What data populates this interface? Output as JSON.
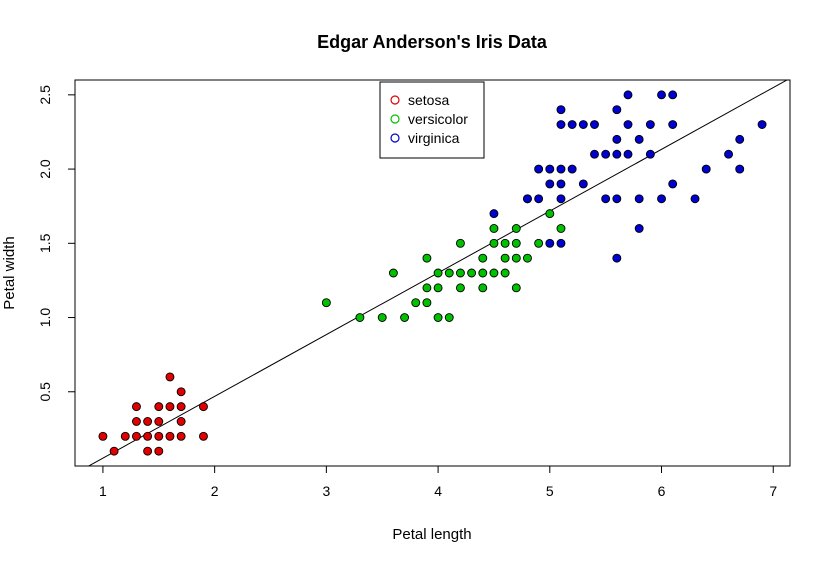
{
  "chart_data": {
    "type": "scatter",
    "title": "Edgar Anderson's Iris Data",
    "xlabel": "Petal length",
    "ylabel": "Petal width",
    "xlim": [
      0.75,
      7.15
    ],
    "ylim": [
      0,
      2.6
    ],
    "xticks": [
      "1",
      "2",
      "3",
      "4",
      "5",
      "6",
      "7"
    ],
    "xtick_values": [
      1,
      2,
      3,
      4,
      5,
      6,
      7
    ],
    "yticks": [
      "0.5",
      "1.0",
      "1.5",
      "2.0",
      "2.5"
    ],
    "ytick_values": [
      0.5,
      1.0,
      1.5,
      2.0,
      2.5
    ],
    "grid": false,
    "legend_position": "top-center",
    "regression_line": {
      "intercept": -0.363,
      "slope": 0.416,
      "color": "#000000"
    },
    "series": [
      {
        "name": "setosa",
        "color": "#e00000",
        "points": [
          [
            1.0,
            0.2
          ],
          [
            1.1,
            0.1
          ],
          [
            1.2,
            0.2
          ],
          [
            1.3,
            0.2
          ],
          [
            1.3,
            0.3
          ],
          [
            1.3,
            0.4
          ],
          [
            1.4,
            0.1
          ],
          [
            1.4,
            0.2
          ],
          [
            1.4,
            0.3
          ],
          [
            1.5,
            0.1
          ],
          [
            1.5,
            0.2
          ],
          [
            1.5,
            0.3
          ],
          [
            1.5,
            0.4
          ],
          [
            1.6,
            0.2
          ],
          [
            1.6,
            0.4
          ],
          [
            1.6,
            0.6
          ],
          [
            1.7,
            0.2
          ],
          [
            1.7,
            0.3
          ],
          [
            1.7,
            0.4
          ],
          [
            1.7,
            0.5
          ],
          [
            1.9,
            0.2
          ],
          [
            1.9,
            0.4
          ]
        ]
      },
      {
        "name": "versicolor",
        "color": "#00c000",
        "points": [
          [
            3.0,
            1.1
          ],
          [
            3.3,
            1.0
          ],
          [
            3.5,
            1.0
          ],
          [
            3.6,
            1.3
          ],
          [
            3.7,
            1.0
          ],
          [
            3.8,
            1.1
          ],
          [
            3.9,
            1.1
          ],
          [
            3.9,
            1.2
          ],
          [
            3.9,
            1.4
          ],
          [
            4.0,
            1.0
          ],
          [
            4.0,
            1.2
          ],
          [
            4.0,
            1.3
          ],
          [
            4.1,
            1.0
          ],
          [
            4.1,
            1.3
          ],
          [
            4.2,
            1.2
          ],
          [
            4.2,
            1.3
          ],
          [
            4.2,
            1.5
          ],
          [
            4.3,
            1.3
          ],
          [
            4.4,
            1.2
          ],
          [
            4.4,
            1.3
          ],
          [
            4.4,
            1.4
          ],
          [
            4.5,
            1.3
          ],
          [
            4.5,
            1.5
          ],
          [
            4.5,
            1.6
          ],
          [
            4.6,
            1.3
          ],
          [
            4.6,
            1.4
          ],
          [
            4.6,
            1.5
          ],
          [
            4.7,
            1.2
          ],
          [
            4.7,
            1.4
          ],
          [
            4.7,
            1.5
          ],
          [
            4.7,
            1.6
          ],
          [
            4.8,
            1.4
          ],
          [
            4.8,
            1.8
          ],
          [
            4.9,
            1.5
          ],
          [
            5.0,
            1.7
          ],
          [
            5.1,
            1.6
          ]
        ]
      },
      {
        "name": "virginica",
        "color": "#0000d0",
        "points": [
          [
            4.5,
            1.7
          ],
          [
            4.8,
            1.8
          ],
          [
            4.9,
            1.8
          ],
          [
            4.9,
            2.0
          ],
          [
            5.0,
            1.5
          ],
          [
            5.0,
            1.9
          ],
          [
            5.0,
            2.0
          ],
          [
            5.1,
            1.5
          ],
          [
            5.1,
            1.8
          ],
          [
            5.1,
            1.9
          ],
          [
            5.1,
            2.0
          ],
          [
            5.1,
            2.3
          ],
          [
            5.1,
            2.4
          ],
          [
            5.2,
            2.0
          ],
          [
            5.2,
            2.3
          ],
          [
            5.3,
            1.9
          ],
          [
            5.3,
            2.3
          ],
          [
            5.4,
            2.1
          ],
          [
            5.4,
            2.3
          ],
          [
            5.5,
            1.8
          ],
          [
            5.5,
            2.1
          ],
          [
            5.6,
            1.4
          ],
          [
            5.6,
            1.8
          ],
          [
            5.6,
            2.1
          ],
          [
            5.6,
            2.2
          ],
          [
            5.6,
            2.4
          ],
          [
            5.7,
            2.1
          ],
          [
            5.7,
            2.3
          ],
          [
            5.7,
            2.5
          ],
          [
            5.8,
            1.6
          ],
          [
            5.8,
            1.8
          ],
          [
            5.8,
            2.2
          ],
          [
            5.9,
            2.1
          ],
          [
            5.9,
            2.3
          ],
          [
            6.0,
            1.8
          ],
          [
            6.0,
            2.5
          ],
          [
            6.1,
            1.9
          ],
          [
            6.1,
            2.3
          ],
          [
            6.1,
            2.5
          ],
          [
            6.3,
            1.8
          ],
          [
            6.4,
            2.0
          ],
          [
            6.6,
            2.1
          ],
          [
            6.7,
            2.0
          ],
          [
            6.7,
            2.2
          ],
          [
            6.9,
            2.3
          ]
        ]
      }
    ]
  }
}
